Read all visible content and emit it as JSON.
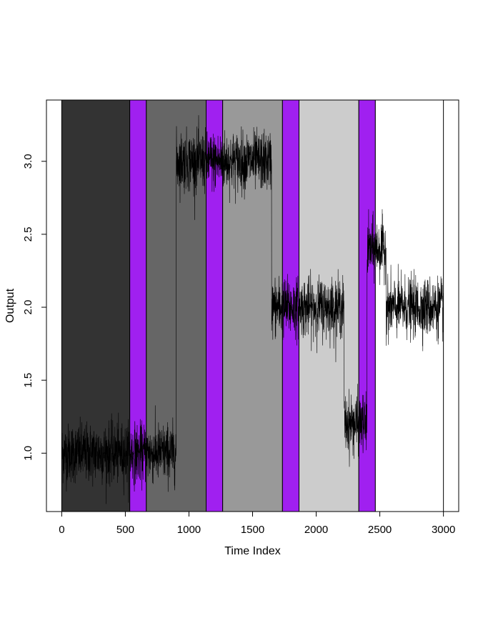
{
  "chart_data": {
    "type": "line",
    "title": "",
    "xlabel": "Time Index",
    "ylabel": "Output",
    "xlim": [
      -120,
      3120
    ],
    "ylim": [
      0.6,
      3.42
    ],
    "x_ticks": [
      0,
      500,
      1000,
      1500,
      2000,
      2500,
      3000
    ],
    "x_tick_labels": [
      "0",
      "500",
      "1000",
      "1500",
      "2000",
      "2500",
      "3000"
    ],
    "y_ticks": [
      1.0,
      1.5,
      2.0,
      2.5,
      3.0
    ],
    "y_tick_labels": [
      "1.0",
      "1.5",
      "2.0",
      "2.5",
      "3.0"
    ],
    "grid": false,
    "shaded_regions": [
      {
        "start": 0,
        "end": 535,
        "color": "#333333"
      },
      {
        "start": 535,
        "end": 665,
        "color": "#A020F0"
      },
      {
        "start": 665,
        "end": 1135,
        "color": "#666666"
      },
      {
        "start": 1135,
        "end": 1265,
        "color": "#A020F0"
      },
      {
        "start": 1265,
        "end": 1735,
        "color": "#999999"
      },
      {
        "start": 1735,
        "end": 1865,
        "color": "#A020F0"
      },
      {
        "start": 1865,
        "end": 2335,
        "color": "#CCCCCC"
      },
      {
        "start": 2335,
        "end": 2465,
        "color": "#A020F0"
      },
      {
        "start": 2465,
        "end": 3000,
        "color": "#FFFFFF"
      }
    ],
    "series": [
      {
        "segments": [
          {
            "x_start": 0,
            "x_end": 900,
            "mean": 1.0
          },
          {
            "x_start": 900,
            "x_end": 1650,
            "mean": 3.0
          },
          {
            "x_start": 1650,
            "x_end": 2220,
            "mean": 2.0
          },
          {
            "x_start": 2220,
            "x_end": 2400,
            "mean": 1.2
          },
          {
            "x_start": 2400,
            "x_end": 2550,
            "mean": 2.4
          },
          {
            "x_start": 2550,
            "x_end": 3000,
            "mean": 2.0
          }
        ],
        "noise_sd": 0.1,
        "color": "#000000"
      }
    ]
  }
}
